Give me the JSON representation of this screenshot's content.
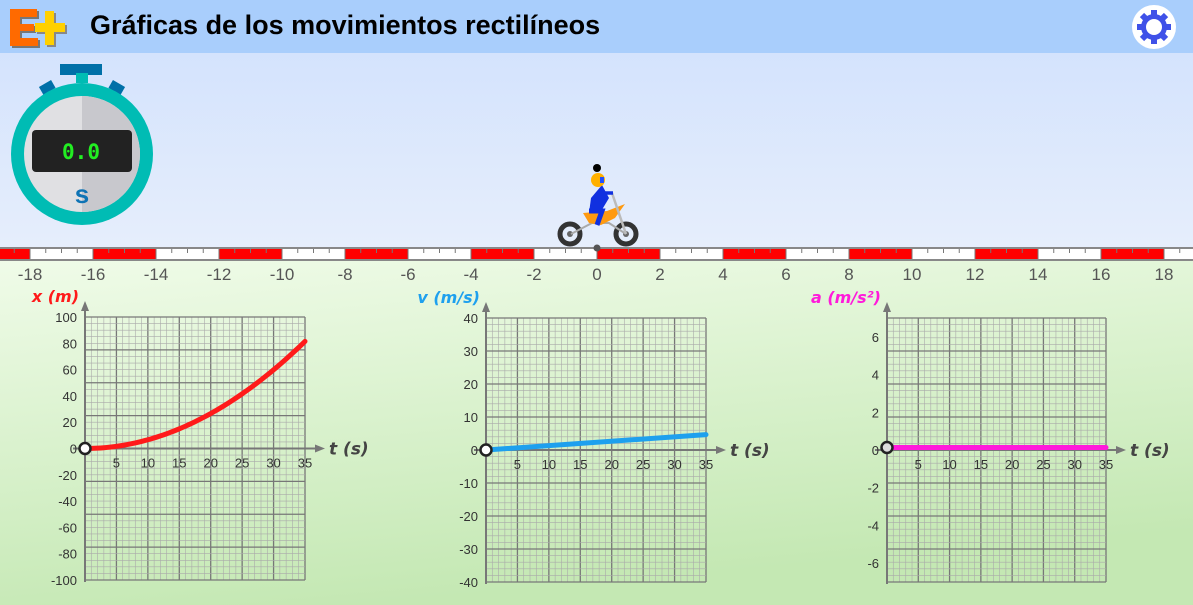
{
  "header": {
    "title": "Gráficas de los movimientos rectilíneos",
    "logo_text": "E+",
    "settings_icon": "gear-icon"
  },
  "colors": {
    "header_bg": "#a9cefc",
    "position": "#ff1a1a",
    "velocity": "#1ea0ee",
    "acceleration": "#ff1adb",
    "stopwatch_ring": "#00bcb4",
    "display_text": "#22ee22"
  },
  "stopwatch": {
    "time": "0.0",
    "unit": "s"
  },
  "ruler": {
    "labels": [
      "-18",
      "-16",
      "-14",
      "-12",
      "-10",
      "-8",
      "-6",
      "-4",
      "-2",
      "0",
      "2",
      "4",
      "6",
      "8",
      "10",
      "12",
      "14",
      "16",
      "18"
    ],
    "motorcycle_position": 0
  },
  "chart_data": [
    {
      "type": "line",
      "ylabel": "x (m)",
      "xlabel": "t (s)",
      "xlim": [
        0,
        35
      ],
      "ylim": [
        -100,
        100
      ],
      "xticks": [
        "5",
        "10",
        "15",
        "20",
        "25",
        "30",
        "35"
      ],
      "yticks": [
        "100",
        "80",
        "60",
        "40",
        "20",
        "0",
        "-20",
        "-40",
        "-60",
        "-80",
        "-100"
      ],
      "grid": true,
      "series": [
        {
          "x": [
            0,
            5,
            10,
            15,
            20,
            25,
            30,
            35
          ],
          "y": [
            0,
            1.7,
            6.7,
            15,
            26.6,
            41.6,
            59.9,
            81.5
          ]
        }
      ],
      "marker": {
        "t": 0,
        "value": 0
      }
    },
    {
      "type": "line",
      "ylabel": "v (m/s)",
      "xlabel": "t (s)",
      "xlim": [
        0,
        35
      ],
      "ylim": [
        -40,
        40
      ],
      "xticks": [
        "5",
        "10",
        "15",
        "20",
        "25",
        "30",
        "35"
      ],
      "yticks": [
        "40",
        "30",
        "20",
        "10",
        "0",
        "-10",
        "-20",
        "-30",
        "-40"
      ],
      "grid": true,
      "series": [
        {
          "x": [
            0,
            35
          ],
          "y": [
            0,
            4.66
          ]
        }
      ],
      "marker": {
        "t": 0,
        "value": 0
      }
    },
    {
      "type": "line",
      "ylabel": "a (m/s²)",
      "xlabel": "t (s)",
      "xlim": [
        0,
        35
      ],
      "ylim": [
        -7,
        7
      ],
      "xticks": [
        "5",
        "10",
        "15",
        "20",
        "25",
        "30",
        "35"
      ],
      "yticks": [
        "6",
        "4",
        "2",
        "0",
        "-2",
        "-4",
        "-6"
      ],
      "grid": true,
      "series": [
        {
          "x": [
            0,
            35
          ],
          "y": [
            0.133,
            0.133
          ]
        }
      ],
      "marker": {
        "t": 0,
        "value": 0.133
      }
    }
  ]
}
